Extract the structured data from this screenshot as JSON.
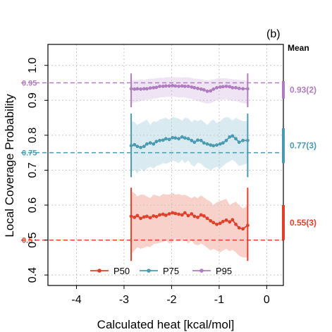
{
  "chart_data": {
    "type": "scatter",
    "panel_label": "(b)",
    "xlabel": "Calculated heat [kcal/mol]",
    "ylabel": "Local Coverage Probability",
    "xlim": [
      -4.6,
      0.35
    ],
    "ylim": [
      0.37,
      1.06
    ],
    "xticks": [
      -4,
      -3,
      -2,
      -1,
      0
    ],
    "xtick_labels": [
      "-4",
      "-3",
      "-2",
      "-1",
      "0"
    ],
    "yticks": [
      0.4,
      0.5,
      0.6,
      0.7,
      0.8,
      0.9,
      1.0
    ],
    "ytick_labels": [
      "0.4",
      "0.5",
      "0.6",
      "0.7",
      "0.8",
      "0.9",
      "1.0"
    ],
    "grid": true,
    "legend_position": "bottom",
    "mean_header": "Mean",
    "band_x_range": [
      -2.85,
      -0.4
    ],
    "series": [
      {
        "name": "P50",
        "color": "#e0402a",
        "band_color": "#f6c9c1",
        "target": 0.5,
        "target_label": "0.5",
        "mean": 0.55,
        "mean_lo": 0.5,
        "mean_hi": 0.6,
        "mean_label": "0.55(3)",
        "x": [
          -2.85,
          -2.78,
          -2.72,
          -2.65,
          -2.58,
          -2.52,
          -2.45,
          -2.38,
          -2.32,
          -2.25,
          -2.18,
          -2.12,
          -2.05,
          -1.98,
          -1.92,
          -1.85,
          -1.78,
          -1.72,
          -1.65,
          -1.58,
          -1.52,
          -1.45,
          -1.38,
          -1.32,
          -1.25,
          -1.18,
          -1.12,
          -1.05,
          -0.98,
          -0.92,
          -0.85,
          -0.78,
          -0.72,
          -0.65,
          -0.58,
          -0.5,
          -0.4
        ],
        "y": [
          0.568,
          0.565,
          0.57,
          0.562,
          0.566,
          0.568,
          0.564,
          0.569,
          0.567,
          0.572,
          0.574,
          0.571,
          0.575,
          0.578,
          0.576,
          0.574,
          0.572,
          0.578,
          0.57,
          0.575,
          0.568,
          0.565,
          0.572,
          0.569,
          0.562,
          0.555,
          0.55,
          0.545,
          0.548,
          0.553,
          0.557,
          0.552,
          0.558,
          0.545,
          0.535,
          0.532,
          0.542
        ],
        "band_upper": [
          0.64,
          0.635,
          0.625,
          0.63,
          0.63,
          0.625,
          0.62,
          0.63,
          0.628,
          0.625,
          0.632,
          0.63,
          0.63,
          0.635,
          0.63,
          0.632,
          0.628,
          0.63,
          0.625,
          0.62,
          0.625,
          0.62,
          0.628,
          0.622,
          0.615,
          0.61,
          0.6,
          0.608,
          0.612,
          0.615,
          0.618,
          0.6,
          0.605,
          0.61,
          0.6,
          0.59,
          0.6
        ],
        "band_lower": [
          0.46,
          0.47,
          0.48,
          0.475,
          0.478,
          0.482,
          0.48,
          0.488,
          0.49,
          0.492,
          0.495,
          0.5,
          0.49,
          0.495,
          0.505,
          0.5,
          0.497,
          0.505,
          0.49,
          0.5,
          0.488,
          0.485,
          0.49,
          0.485,
          0.478,
          0.47,
          0.475,
          0.47,
          0.465,
          0.47,
          0.475,
          0.468,
          0.472,
          0.465,
          0.455,
          0.45,
          0.45
        ]
      },
      {
        "name": "P75",
        "color": "#4a9bb1",
        "band_color": "#d2e8ef",
        "target": 0.75,
        "target_label": "0.75",
        "mean": 0.77,
        "mean_lo": 0.72,
        "mean_hi": 0.82,
        "mean_label": "0.77(3)",
        "x": [
          -2.85,
          -2.78,
          -2.72,
          -2.65,
          -2.58,
          -2.52,
          -2.45,
          -2.38,
          -2.32,
          -2.25,
          -2.18,
          -2.12,
          -2.05,
          -1.98,
          -1.92,
          -1.85,
          -1.78,
          -1.72,
          -1.65,
          -1.58,
          -1.52,
          -1.45,
          -1.38,
          -1.32,
          -1.25,
          -1.18,
          -1.12,
          -1.05,
          -0.98,
          -0.92,
          -0.85,
          -0.78,
          -0.72,
          -0.65,
          -0.58,
          -0.5,
          -0.4
        ],
        "y": [
          0.77,
          0.773,
          0.768,
          0.765,
          0.768,
          0.775,
          0.778,
          0.775,
          0.782,
          0.785,
          0.786,
          0.79,
          0.788,
          0.793,
          0.792,
          0.79,
          0.795,
          0.792,
          0.79,
          0.785,
          0.78,
          0.786,
          0.785,
          0.778,
          0.775,
          0.772,
          0.77,
          0.772,
          0.775,
          0.778,
          0.785,
          0.795,
          0.798,
          0.79,
          0.78,
          0.785,
          0.785
        ],
        "band_upper": [
          0.84,
          0.838,
          0.83,
          0.835,
          0.84,
          0.845,
          0.83,
          0.84,
          0.838,
          0.845,
          0.848,
          0.85,
          0.845,
          0.852,
          0.85,
          0.848,
          0.842,
          0.85,
          0.848,
          0.838,
          0.845,
          0.84,
          0.845,
          0.838,
          0.83,
          0.84,
          0.845,
          0.835,
          0.84,
          0.848,
          0.852,
          0.85,
          0.842,
          0.85,
          0.845,
          0.84,
          0.84
        ],
        "band_lower": [
          0.695,
          0.7,
          0.69,
          0.705,
          0.695,
          0.705,
          0.71,
          0.705,
          0.712,
          0.715,
          0.72,
          0.718,
          0.722,
          0.728,
          0.725,
          0.72,
          0.73,
          0.72,
          0.728,
          0.715,
          0.71,
          0.722,
          0.718,
          0.71,
          0.705,
          0.7,
          0.705,
          0.71,
          0.705,
          0.712,
          0.72,
          0.725,
          0.73,
          0.722,
          0.712,
          0.715,
          0.72
        ]
      },
      {
        "name": "P95",
        "color": "#b07cc0",
        "band_color": "#ebdff1",
        "target": 0.95,
        "target_label": "0.95",
        "mean": 0.93,
        "mean_lo": 0.905,
        "mean_hi": 0.955,
        "mean_label": "0.93(2)",
        "x": [
          -2.85,
          -2.78,
          -2.72,
          -2.65,
          -2.58,
          -2.52,
          -2.45,
          -2.38,
          -2.32,
          -2.25,
          -2.18,
          -2.12,
          -2.05,
          -1.98,
          -1.92,
          -1.85,
          -1.78,
          -1.72,
          -1.65,
          -1.58,
          -1.52,
          -1.45,
          -1.38,
          -1.32,
          -1.25,
          -1.18,
          -1.12,
          -1.05,
          -0.98,
          -0.92,
          -0.85,
          -0.78,
          -0.72,
          -0.65,
          -0.58,
          -0.5,
          -0.4
        ],
        "y": [
          0.933,
          0.932,
          0.933,
          0.932,
          0.933,
          0.933,
          0.935,
          0.936,
          0.937,
          0.94,
          0.94,
          0.941,
          0.941,
          0.942,
          0.941,
          0.94,
          0.941,
          0.94,
          0.94,
          0.938,
          0.936,
          0.934,
          0.932,
          0.93,
          0.926,
          0.927,
          0.932,
          0.936,
          0.938,
          0.939,
          0.94,
          0.939,
          0.936,
          0.936,
          0.934,
          0.933,
          0.933
        ],
        "band_upper": [
          0.955,
          0.958,
          0.957,
          0.96,
          0.958,
          0.96,
          0.962,
          0.962,
          0.963,
          0.965,
          0.964,
          0.966,
          0.966,
          0.967,
          0.966,
          0.966,
          0.965,
          0.966,
          0.966,
          0.964,
          0.962,
          0.962,
          0.96,
          0.958,
          0.957,
          0.958,
          0.96,
          0.962,
          0.963,
          0.963,
          0.963,
          0.962,
          0.96,
          0.96,
          0.958,
          0.957,
          0.957
        ],
        "band_lower": [
          0.89,
          0.895,
          0.895,
          0.898,
          0.9,
          0.902,
          0.902,
          0.905,
          0.905,
          0.908,
          0.908,
          0.91,
          0.91,
          0.91,
          0.91,
          0.908,
          0.908,
          0.908,
          0.905,
          0.904,
          0.9,
          0.898,
          0.895,
          0.893,
          0.89,
          0.892,
          0.895,
          0.9,
          0.902,
          0.902,
          0.903,
          0.9,
          0.898,
          0.898,
          0.895,
          0.892,
          0.89
        ]
      }
    ]
  }
}
